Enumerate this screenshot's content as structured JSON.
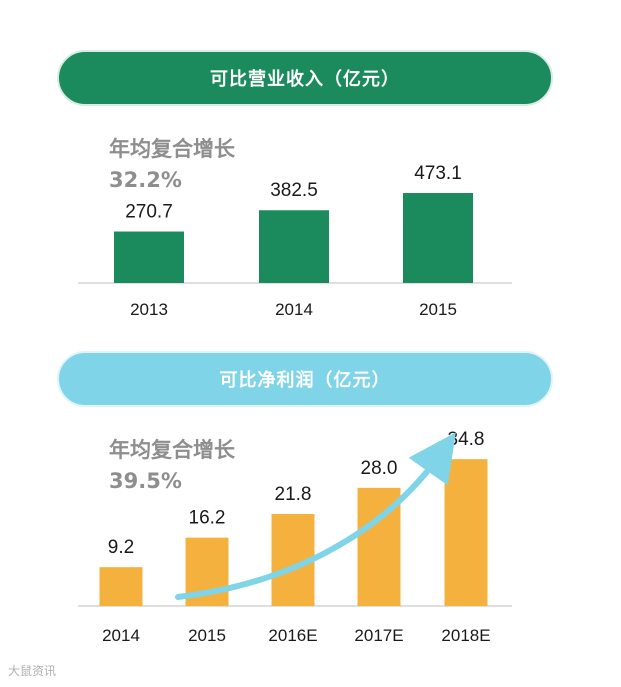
{
  "charts": {
    "revenue": {
      "title": "可比营业收入（亿元）",
      "cagr_label": "年均复合增长",
      "cagr_value": "32.2%"
    },
    "profit": {
      "title": "可比净利润（亿元）",
      "cagr_label": "年均复合增长",
      "cagr_value": "39.5%"
    }
  },
  "chart_data": [
    {
      "type": "bar",
      "title": "可比营业收入（亿元）",
      "categories": [
        "2013",
        "2014",
        "2015"
      ],
      "values": [
        270.7,
        382.5,
        473.1
      ],
      "value_labels": [
        "270.7",
        "382.5",
        "473.1"
      ],
      "annotation": "年均复合增长 32.2%",
      "color": "#1b8a5c",
      "grid": false
    },
    {
      "type": "bar",
      "title": "可比净利润（亿元）",
      "categories": [
        "2014",
        "2015",
        "2016E",
        "2017E",
        "2018E"
      ],
      "values": [
        9.2,
        16.2,
        21.8,
        28.0,
        34.8
      ],
      "value_labels": [
        "9.2",
        "16.2",
        "21.8",
        "28.0",
        "34.8"
      ],
      "annotation": "年均复合增长 39.5%",
      "color": "#f5b13d",
      "trend_arrow_color": "#7fd4e8",
      "grid": false
    }
  ],
  "watermark": "大鼠资讯"
}
